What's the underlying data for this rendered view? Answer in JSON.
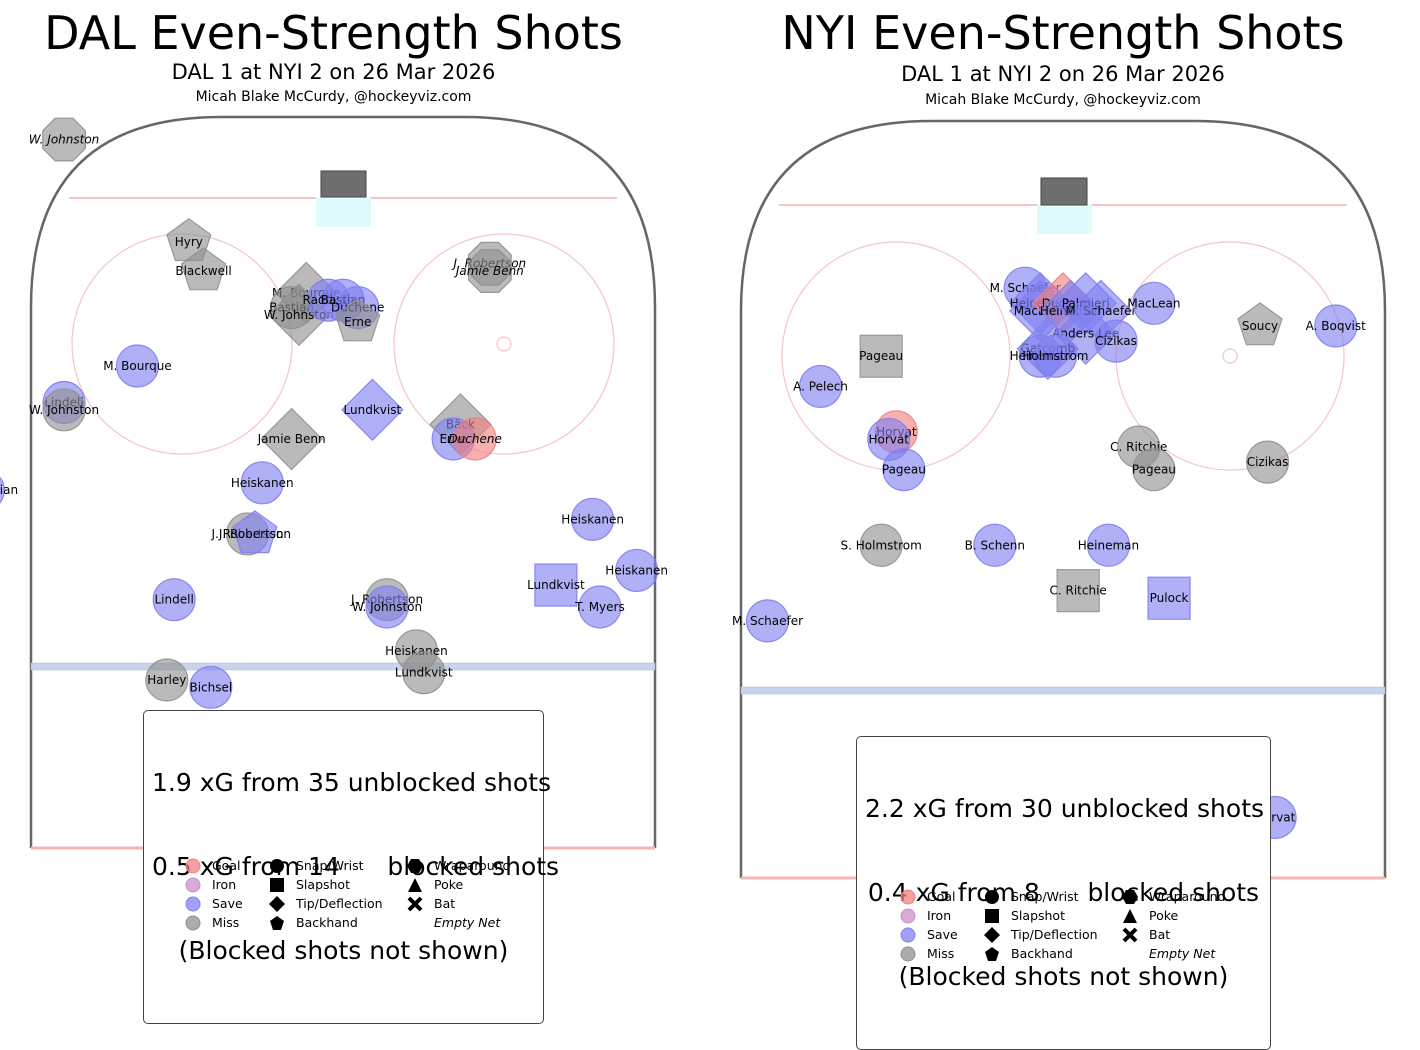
{
  "legend": {
    "outcomes": [
      {
        "label": "Goal",
        "color": "#f08080"
      },
      {
        "label": "Iron",
        "color": "#c890c8"
      },
      {
        "label": "Save",
        "color": "#8080f0"
      },
      {
        "label": "Miss",
        "color": "#909090"
      }
    ],
    "shot_types": [
      {
        "label": "Snap/Wrist",
        "shape": "circle"
      },
      {
        "label": "Slapshot",
        "shape": "square"
      },
      {
        "label": "Tip/Deflection",
        "shape": "diamond"
      },
      {
        "label": "Backhand",
        "shape": "pentagon"
      },
      {
        "label": "Wraparound",
        "shape": "hexagon"
      },
      {
        "label": "Poke",
        "shape": "triangle"
      },
      {
        "label": "Bat",
        "shape": "cross"
      }
    ],
    "empty_net_label": "Empty Net"
  },
  "chart_data": [
    {
      "type": "scatter",
      "title": "DAL Even-Strength Shots",
      "subtitle": "DAL 1 at NYI 2 on 26 Mar 2026",
      "credit": "Micah Blake McCurdy, @hockeyviz.com",
      "summary_lines": [
        "1.9 xG from 35 unblocked shots",
        "0.5 xG from 14      blocked shots",
        "(Blocked shots not shown)"
      ],
      "shots": [
        {
          "x": -38,
          "y": 97,
          "player": "W. Johnston",
          "outcome": "Miss",
          "shape": "octagon",
          "empty_net": true
        },
        {
          "x": -21,
          "y": 83,
          "player": "Hyry",
          "outcome": "Miss",
          "shape": "pentagon"
        },
        {
          "x": -19,
          "y": 79,
          "player": "Blackwell",
          "outcome": "Miss",
          "shape": "pentagon"
        },
        {
          "x": 20,
          "y": 80,
          "player": "J. Robertson",
          "outcome": "Miss",
          "shape": "octagon",
          "empty_net": true
        },
        {
          "x": 20,
          "y": 79,
          "player": "Jamie Benn",
          "outcome": "Miss",
          "shape": "octagon",
          "empty_net": true
        },
        {
          "x": -5,
          "y": 76,
          "player": "M. Bourque",
          "outcome": "Miss",
          "shape": "diamond"
        },
        {
          "x": -7,
          "y": 74,
          "player": "Bastian",
          "outcome": "Miss",
          "shape": "circle"
        },
        {
          "x": -6,
          "y": 73,
          "player": "W. Johnston",
          "outcome": "Miss",
          "shape": "diamond"
        },
        {
          "x": -2,
          "y": 75,
          "player": "Raddysh",
          "outcome": "Save",
          "shape": "circle"
        },
        {
          "x": 0,
          "y": 75,
          "player": "Bastian",
          "outcome": "Save",
          "shape": "circle"
        },
        {
          "x": 2,
          "y": 74,
          "player": "Duchene",
          "outcome": "Save",
          "shape": "circle"
        },
        {
          "x": 2,
          "y": 72,
          "player": "Erne",
          "outcome": "Miss",
          "shape": "pentagon"
        },
        {
          "x": -28,
          "y": 66,
          "player": "M. Bourque",
          "outcome": "Save",
          "shape": "circle"
        },
        {
          "x": -38,
          "y": 61,
          "player": "Lindell",
          "outcome": "Save",
          "shape": "circle"
        },
        {
          "x": -38,
          "y": 60,
          "player": "W. Johnston",
          "outcome": "Miss",
          "shape": "circle"
        },
        {
          "x": 4,
          "y": 60,
          "player": "Lundkvist",
          "outcome": "Save",
          "shape": "diamond"
        },
        {
          "x": -7,
          "y": 56,
          "player": "Jamie Benn",
          "outcome": "Miss",
          "shape": "diamond"
        },
        {
          "x": 16,
          "y": 58,
          "player": "Bäck",
          "outcome": "Miss",
          "shape": "diamond"
        },
        {
          "x": 15,
          "y": 56,
          "player": "Erne",
          "outcome": "Save",
          "shape": "circle"
        },
        {
          "x": 18,
          "y": 56,
          "player": "Duchene",
          "outcome": "Goal",
          "shape": "circle",
          "empty_net": true
        },
        {
          "x": -49,
          "y": 49,
          "player": "Hryckowian",
          "outcome": "Save",
          "shape": "circle"
        },
        {
          "x": -11,
          "y": 50,
          "player": "Heiskanen",
          "outcome": "Save",
          "shape": "circle"
        },
        {
          "x": 34,
          "y": 45,
          "player": "Heiskanen",
          "outcome": "Save",
          "shape": "circle"
        },
        {
          "x": -13,
          "y": 43,
          "player": "J. Robertson",
          "outcome": "Miss",
          "shape": "circle"
        },
        {
          "x": -12,
          "y": 43,
          "player": "J. Robertson",
          "outcome": "Save",
          "shape": "pentagon"
        },
        {
          "x": 40,
          "y": 38,
          "player": "Heiskanen",
          "outcome": "Save",
          "shape": "circle"
        },
        {
          "x": 29,
          "y": 36,
          "player": "Lundkvist",
          "outcome": "Save",
          "shape": "square"
        },
        {
          "x": -23,
          "y": 34,
          "player": "Lindell",
          "outcome": "Save",
          "shape": "circle"
        },
        {
          "x": 6,
          "y": 34,
          "player": "J. Robertson",
          "outcome": "Miss",
          "shape": "circle"
        },
        {
          "x": 6,
          "y": 33,
          "player": "W. Johnston",
          "outcome": "Save",
          "shape": "circle"
        },
        {
          "x": 35,
          "y": 33,
          "player": "T. Myers",
          "outcome": "Save",
          "shape": "circle"
        },
        {
          "x": 10,
          "y": 27,
          "player": "Heiskanen",
          "outcome": "Miss",
          "shape": "circle"
        },
        {
          "x": 11,
          "y": 24,
          "player": "Lundkvist",
          "outcome": "Miss",
          "shape": "circle"
        },
        {
          "x": -24,
          "y": 23,
          "player": "Harley",
          "outcome": "Miss",
          "shape": "circle"
        },
        {
          "x": -18,
          "y": 22,
          "player": "Bichsel",
          "outcome": "Save",
          "shape": "circle"
        }
      ]
    },
    {
      "type": "scatter",
      "title": "NYI Even-Strength Shots",
      "subtitle": "DAL 1 at NYI 2 on 26 Mar 2026",
      "credit": "Micah Blake McCurdy, @hockeyviz.com",
      "summary_lines": [
        "2.2 xG from 30 unblocked shots",
        "0.4 xG from 8      blocked shots",
        "(Blocked shots not shown)"
      ],
      "shots": [
        {
          "x": -5,
          "y": 78,
          "player": "M. Schaefer",
          "outcome": "Save",
          "shape": "circle"
        },
        {
          "x": -3,
          "y": 76,
          "player": "Heineman",
          "outcome": "Save",
          "shape": "diamond"
        },
        {
          "x": -3,
          "y": 75,
          "player": "MacLean",
          "outcome": "Save",
          "shape": "diamond"
        },
        {
          "x": 0,
          "y": 76,
          "player": "Duclair",
          "outcome": "Goal",
          "shape": "diamond"
        },
        {
          "x": 1,
          "y": 75,
          "player": "Heineman",
          "outcome": "Save",
          "shape": "diamond"
        },
        {
          "x": 3,
          "y": 76,
          "player": "Palmieri",
          "outcome": "Save",
          "shape": "diamond"
        },
        {
          "x": 5,
          "y": 75,
          "player": "M. Schaefer",
          "outcome": "Save",
          "shape": "diamond"
        },
        {
          "x": 12,
          "y": 76,
          "player": "MacLean",
          "outcome": "Save",
          "shape": "circle"
        },
        {
          "x": 3,
          "y": 72,
          "player": "Anders Lee",
          "outcome": "Save",
          "shape": "diamond"
        },
        {
          "x": 7,
          "y": 71,
          "player": "Cizikas",
          "outcome": "Save",
          "shape": "circle"
        },
        {
          "x": -2,
          "y": 70,
          "player": "Gatcomb",
          "outcome": "Save",
          "shape": "diamond"
        },
        {
          "x": -3,
          "y": 69,
          "player": "Heineman",
          "outcome": "Save",
          "shape": "circle"
        },
        {
          "x": -1,
          "y": 69,
          "player": "Holmstrom",
          "outcome": "Save",
          "shape": "circle"
        },
        {
          "x": 26,
          "y": 73,
          "player": "Soucy",
          "outcome": "Miss",
          "shape": "pentagon"
        },
        {
          "x": 36,
          "y": 73,
          "player": "A. Boqvist",
          "outcome": "Save",
          "shape": "circle"
        },
        {
          "x": -24,
          "y": 69,
          "player": "Pageau",
          "outcome": "Miss",
          "shape": "square"
        },
        {
          "x": -32,
          "y": 65,
          "player": "A. Pelech",
          "outcome": "Save",
          "shape": "circle"
        },
        {
          "x": -22,
          "y": 59,
          "player": "Horvat",
          "outcome": "Goal",
          "shape": "circle"
        },
        {
          "x": -23,
          "y": 58,
          "player": "Horvat",
          "outcome": "Save",
          "shape": "circle"
        },
        {
          "x": -21,
          "y": 54,
          "player": "Pageau",
          "outcome": "Save",
          "shape": "circle"
        },
        {
          "x": 10,
          "y": 57,
          "player": "C. Ritchie",
          "outcome": "Miss",
          "shape": "circle"
        },
        {
          "x": 12,
          "y": 54,
          "player": "Pageau",
          "outcome": "Miss",
          "shape": "circle"
        },
        {
          "x": 27,
          "y": 55,
          "player": "Cizikas",
          "outcome": "Miss",
          "shape": "circle"
        },
        {
          "x": -24,
          "y": 44,
          "player": "S. Holmstrom",
          "outcome": "Miss",
          "shape": "circle"
        },
        {
          "x": -9,
          "y": 44,
          "player": "B. Schenn",
          "outcome": "Save",
          "shape": "circle"
        },
        {
          "x": 6,
          "y": 44,
          "player": "Heineman",
          "outcome": "Save",
          "shape": "circle"
        },
        {
          "x": 2,
          "y": 38,
          "player": "C. Ritchie",
          "outcome": "Miss",
          "shape": "square"
        },
        {
          "x": 14,
          "y": 37,
          "player": "Pulock",
          "outcome": "Save",
          "shape": "square"
        },
        {
          "x": -39,
          "y": 34,
          "player": "M. Schaefer",
          "outcome": "Save",
          "shape": "circle"
        },
        {
          "x": 28,
          "y": 8,
          "player": "Horvat",
          "outcome": "Save",
          "shape": "circle"
        }
      ]
    }
  ]
}
